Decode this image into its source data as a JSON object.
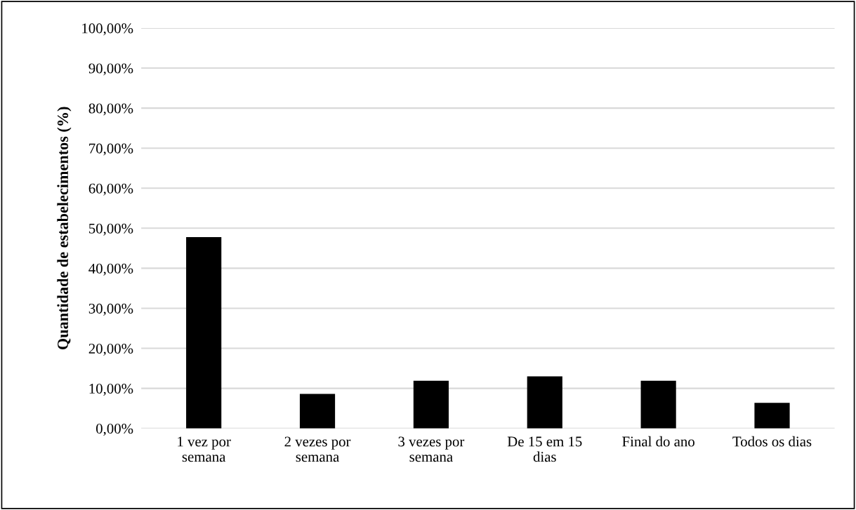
{
  "chart_data": {
    "type": "bar",
    "ylabel": "Quantidade de estabelecimentos (%)",
    "categories": [
      "1 vez por\nsemana",
      "2 vezes por\nsemana",
      "3 vezes por\nsemana",
      "De 15 em 15\ndias",
      "Final do ano",
      "Todos os dias"
    ],
    "values": [
      47.8,
      8.6,
      11.9,
      13.0,
      11.9,
      6.4
    ],
    "color": "#000000",
    "ylim": [
      0,
      100
    ],
    "yticks": [
      {
        "value": 0,
        "label": "0,00%"
      },
      {
        "value": 10,
        "label": "10,00%"
      },
      {
        "value": 20,
        "label": "20,00%"
      },
      {
        "value": 30,
        "label": "30,00%"
      },
      {
        "value": 40,
        "label": "40,00%"
      },
      {
        "value": 50,
        "label": "50,00%"
      },
      {
        "value": 60,
        "label": "60,00%"
      },
      {
        "value": 70,
        "label": "70,00%"
      },
      {
        "value": 80,
        "label": "80,00%"
      },
      {
        "value": 90,
        "label": "90,00%"
      },
      {
        "value": 100,
        "label": "100,00%"
      }
    ],
    "grid": "y"
  }
}
